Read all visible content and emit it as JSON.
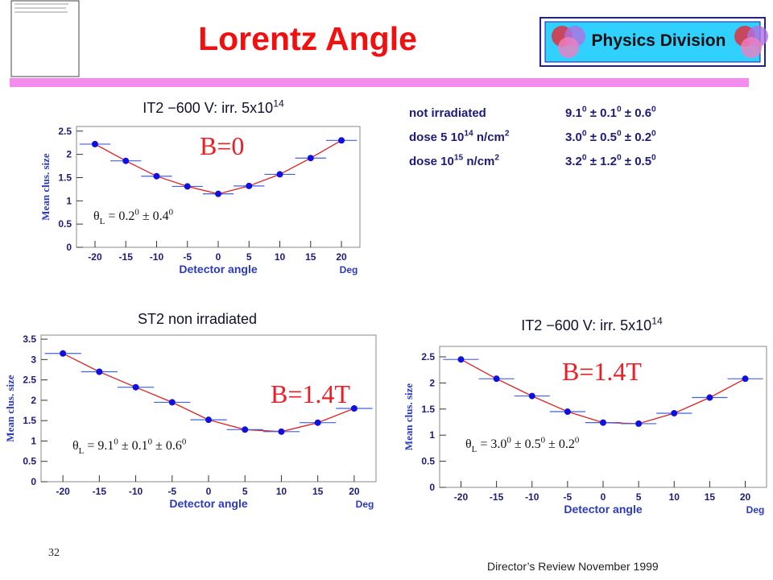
{
  "slide": {
    "title": "Lorentz Angle",
    "logo": "Physics Division",
    "table": [
      {
        "label": [
          {
            "text": "not irradiated"
          }
        ],
        "value": [
          {
            "text": "9.1"
          },
          {
            "text": "0",
            "style": "sup"
          },
          {
            "text": "  ±  0.1"
          },
          {
            "text": "0",
            "style": "sup"
          },
          {
            "text": " ±  0.6"
          },
          {
            "text": "0",
            "style": "sup"
          }
        ]
      },
      {
        "label": [
          {
            "text": "dose 5 10"
          },
          {
            "text": "14",
            "style": "sup"
          },
          {
            "text": " n/cm"
          },
          {
            "text": "2",
            "style": "sup"
          }
        ],
        "value": [
          {
            "text": "3.0"
          },
          {
            "text": "0",
            "style": "sup"
          },
          {
            "text": "  ±  0.5"
          },
          {
            "text": "0",
            "style": "sup"
          },
          {
            "text": " ±  0.2"
          },
          {
            "text": "0",
            "style": "sup"
          }
        ]
      },
      {
        "label": [
          {
            "text": "dose 10"
          },
          {
            "text": "15",
            "style": "sup"
          },
          {
            "text": "   n/cm"
          },
          {
            "text": "2",
            "style": "sup"
          }
        ],
        "value": [
          {
            "text": "3.2"
          },
          {
            "text": "0",
            "style": "sup"
          },
          {
            "text": "  ±  1.2"
          },
          {
            "text": "0",
            "style": "sup"
          },
          {
            "text": " ±  0.5"
          },
          {
            "text": "0",
            "style": "sup"
          }
        ]
      }
    ],
    "page_number": "32",
    "footer": "Director’s Review November 1999"
  },
  "chart_data": [
    {
      "type": "scatter",
      "title": [
        {
          "text": "IT2 −600 V:"
        },
        {
          "text": "   irr. 5x10"
        },
        {
          "text": "14",
          "style": "sup"
        }
      ],
      "x_label": "Detector angle",
      "x_unit": "Deg",
      "y_label": "Mean clus. size",
      "x": [
        -20,
        -15,
        -10,
        -5,
        0,
        5,
        10,
        15,
        20
      ],
      "values": [
        2.22,
        1.86,
        1.53,
        1.31,
        1.15,
        1.32,
        1.57,
        1.92,
        2.3
      ],
      "xerr": [
        2.5,
        2.5,
        2.5,
        2.5,
        2.5,
        2.5,
        2.5,
        2.5,
        2.5
      ],
      "color": "#1010e0",
      "fit_color": "#e02020",
      "xlim": [
        -23,
        23
      ],
      "xticks": [
        -20,
        -15,
        -10,
        -5,
        0,
        5,
        10,
        15,
        20
      ],
      "ylim": [
        0,
        2.6
      ],
      "yticks": [
        0,
        0.5,
        1,
        1.5,
        2,
        2.5
      ],
      "annotations": [
        [
          {
            "text": "B=0"
          }
        ],
        [
          {
            "text": "θ"
          },
          {
            "text": "L",
            "style": "sub"
          },
          {
            "text": " = 0.2"
          },
          {
            "text": "0",
            "style": "sup"
          },
          {
            "text": "  ±  0.4"
          },
          {
            "text": "0",
            "style": "sup"
          }
        ]
      ]
    },
    {
      "type": "scatter",
      "title": [
        {
          "text": "ST2 non irradiated"
        }
      ],
      "x_label": "Detector angle",
      "x_unit": "Deg",
      "y_label": "Mean clus. size",
      "x": [
        -20,
        -15,
        -10,
        -5,
        0,
        5,
        10,
        15,
        20
      ],
      "values": [
        3.15,
        2.7,
        2.32,
        1.95,
        1.52,
        1.28,
        1.23,
        1.45,
        1.8
      ],
      "xerr": [
        2.5,
        2.5,
        2.5,
        2.5,
        2.5,
        2.5,
        2.5,
        2.5,
        2.5
      ],
      "color": "#1010e0",
      "fit_color": "#e02020",
      "xlim": [
        -23,
        23
      ],
      "xticks": [
        -20,
        -15,
        -10,
        -5,
        0,
        5,
        10,
        15,
        20
      ],
      "ylim": [
        0,
        3.6
      ],
      "yticks": [
        0,
        0.5,
        1,
        1.5,
        2,
        2.5,
        3,
        3.5
      ],
      "annotations": [
        [
          {
            "text": "B=1.4T"
          }
        ],
        [
          {
            "text": "θ"
          },
          {
            "text": "L",
            "style": "sub"
          },
          {
            "text": " = 9.1"
          },
          {
            "text": "0",
            "style": "sup"
          },
          {
            "text": "  ±  0.1"
          },
          {
            "text": "0",
            "style": "sup"
          },
          {
            "text": " ±  0.6"
          },
          {
            "text": "0",
            "style": "sup"
          }
        ]
      ]
    },
    {
      "type": "scatter",
      "title": [
        {
          "text": "IT2 −600 V:"
        },
        {
          "text": "   irr. 5x10"
        },
        {
          "text": "14",
          "style": "sup"
        }
      ],
      "x_label": "Detector angle",
      "x_unit": "Deg",
      "y_label": "Mean clus. size",
      "x": [
        -20,
        -15,
        -10,
        -5,
        0,
        5,
        10,
        15,
        20
      ],
      "values": [
        2.45,
        2.08,
        1.75,
        1.45,
        1.24,
        1.22,
        1.42,
        1.72,
        2.08
      ],
      "xerr": [
        2.5,
        2.5,
        2.5,
        2.5,
        2.5,
        2.5,
        2.5,
        2.5,
        2.5
      ],
      "color": "#1010e0",
      "fit_color": "#e02020",
      "xlim": [
        -23,
        23
      ],
      "xticks": [
        -20,
        -15,
        -10,
        -5,
        0,
        5,
        10,
        15,
        20
      ],
      "ylim": [
        0,
        2.7
      ],
      "yticks": [
        0,
        0.5,
        1,
        1.5,
        2,
        2.5
      ],
      "annotations": [
        [
          {
            "text": "B=1.4T"
          }
        ],
        [
          {
            "text": "θ"
          },
          {
            "text": "L",
            "style": "sub"
          },
          {
            "text": " = 3.0"
          },
          {
            "text": "0",
            "style": "sup"
          },
          {
            "text": "  ±  0.5"
          },
          {
            "text": "0",
            "style": "sup"
          },
          {
            "text": " ±  0.2"
          },
          {
            "text": "0",
            "style": "sup"
          }
        ]
      ]
    }
  ]
}
